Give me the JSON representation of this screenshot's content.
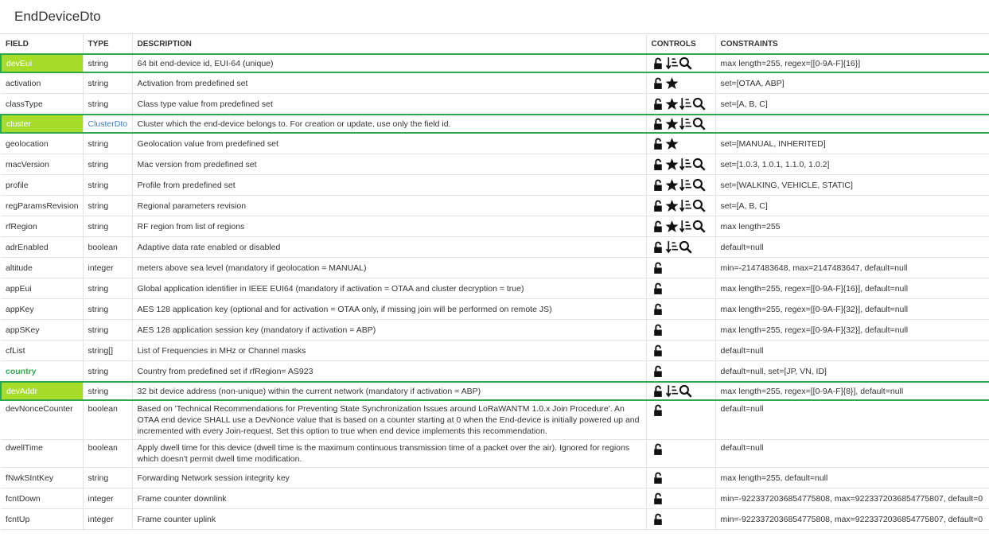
{
  "title": "EndDeviceDto",
  "table": {
    "columns": [
      "FIELD",
      "TYPE",
      "DESCRIPTION",
      "CONTROLS",
      "CONSTRAINTS"
    ],
    "rows": [
      {
        "field": "devEui",
        "type": "string",
        "description": "64 bit end-device id, EUI-64 (unique)",
        "constraints": "max length=255, regex=[[0-9A-F]{16}]"
      },
      {
        "field": "activation",
        "type": "string",
        "description": "Activation from predefined set",
        "constraints": "set=[OTAA, ABP]"
      },
      {
        "field": "classType",
        "type": "string",
        "description": "Class type value from predefined set",
        "constraints": "set=[A, B, C]"
      },
      {
        "field": "cluster",
        "type": "ClusterDto",
        "description": "Cluster which the end-device belongs to. For creation or update, use only the field id."
      },
      {
        "field": "geolocation",
        "type": "string",
        "description": "Geolocation value from predefined set",
        "constraints": "set=[MANUAL, INHERITED]"
      },
      {
        "field": "macVersion",
        "type": "string",
        "description": "Mac version from predefined set",
        "constraints": "set=[1.0.3, 1.0.1, 1.1.0, 1.0.2]"
      },
      {
        "field": "profile",
        "type": "string",
        "description": "Profile from predefined set",
        "constraints": "set=[WALKING, VEHICLE, STATIC]"
      },
      {
        "field": "regParamsRevision",
        "type": "string",
        "description": "Regional parameters revision",
        "constraints": "set=[A, B, C]"
      },
      {
        "field": "rfRegion",
        "type": "string",
        "description": "RF region from list of regions",
        "constraints": "max length=255"
      },
      {
        "field": "adrEnabled",
        "type": "boolean",
        "description": "Adaptive data rate enabled or disabled",
        "constraints": "default=null"
      },
      {
        "field": "altitude",
        "type": "integer",
        "description": "meters above sea level (mandatory if geolocation = MANUAL)",
        "constraints": "min=-2147483648, max=2147483647, default=null"
      },
      {
        "field": "appEui",
        "type": "string",
        "description": "Global application identifier in IEEE EUI64 (mandatory if activation = OTAA and cluster decryption = true)",
        "constraints": "max length=255, regex=[[0-9A-F]{16}], default=null"
      },
      {
        "field": "appKey",
        "type": "string",
        "description": "AES 128 application key (optional and for activation = OTAA only, if missing join will be performed on remote JS)",
        "constraints": "max length=255, regex=[[0-9A-F]{32}], default=null"
      },
      {
        "field": "appSKey",
        "type": "string",
        "description": "AES 128 application session key (mandatory if activation = ABP)",
        "constraints": "max length=255, regex=[[0-9A-F]{32}], default=null"
      },
      {
        "field": "cfList",
        "type": "string[]",
        "description": "List of Frequencies in MHz or Channel masks",
        "constraints": "default=null"
      },
      {
        "field": "country",
        "type": "string",
        "description": "Country from predefined set if rfRegion= AS923",
        "constraints": "default=null, set=[JP, VN, ID]"
      },
      {
        "field": "devAddr",
        "type": "string",
        "description": "32 bit device address (non-unique) within the current network (mandatory if activation = ABP)",
        "constraints": "max length=255, regex=[[0-9A-F]{8}], default=null"
      },
      {
        "field": "devNonceCounter",
        "type": "boolean",
        "description": "Based on 'Technical Recommendations for Preventing State Synchronization Issues around LoRaWANTM 1.0.x Join Procedure'. An OTAA end device SHALL use a DevNonce value that is based on a counter starting at 0 when the End-device is initially powered up and incremented with every Join-request. Set this option to true when end device implements this recommendation.",
        "constraints": "default=null"
      },
      {
        "field": "dwellTime",
        "type": "boolean",
        "description": "Apply dwell time for this device (dwell time is the maximum continuous transmission time of a packet over the air). Ignored for regions which doesn't permit dwell time modification.",
        "constraints": "default=null"
      },
      {
        "field": "fNwkSIntKey",
        "type": "string",
        "description": "Forwarding Network session integrity key",
        "constraints": "max length=255, default=null"
      },
      {
        "field": "fcntDown",
        "type": "integer",
        "description": "Frame counter downlink",
        "constraints": "min=-9223372036854775808, max=9223372036854775807, default=0"
      },
      {
        "field": "fcntUp",
        "type": "integer",
        "description": "Frame counter uplink",
        "constraints": "min=-9223372036854775808, max=9223372036854775807, default=0"
      }
    ]
  }
}
